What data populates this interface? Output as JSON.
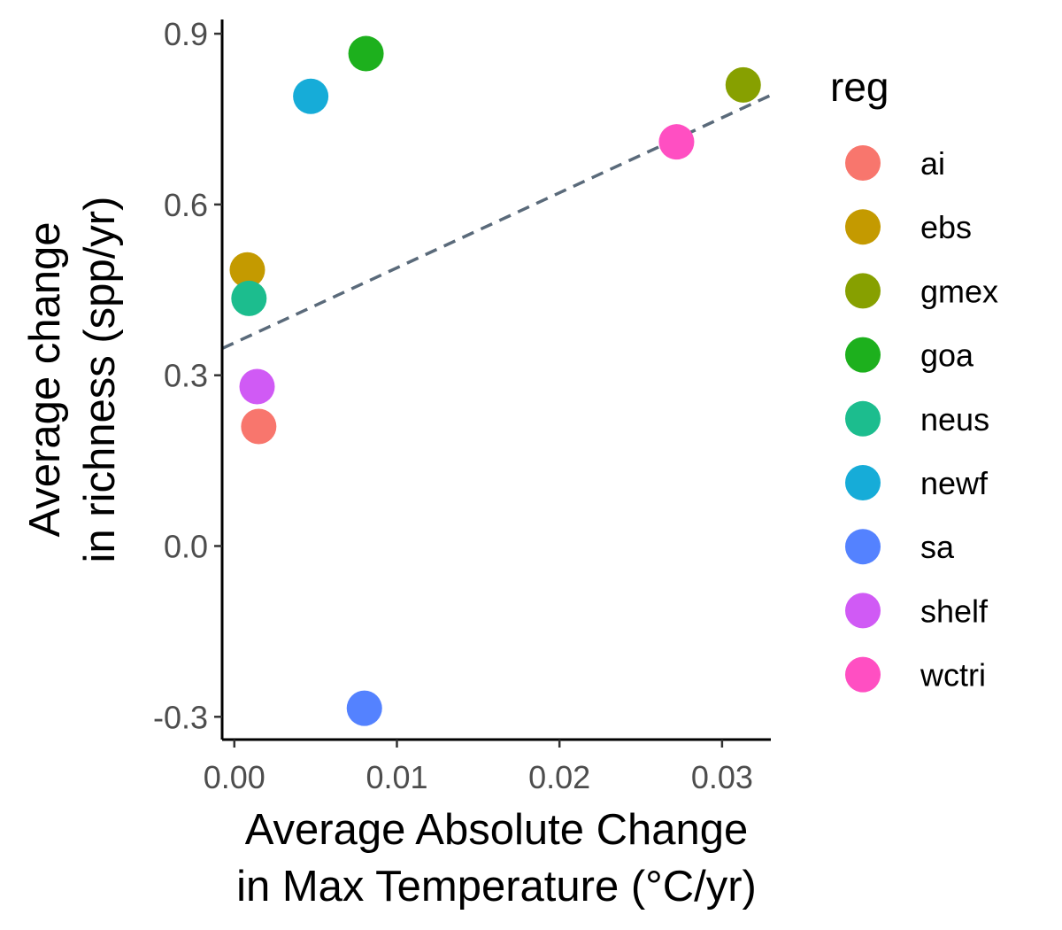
{
  "chart_data": {
    "type": "scatter",
    "xlabel": [
      "Average Absolute Change",
      "in Max Temperature (°C/yr)"
    ],
    "ylabel": [
      "Average change",
      "in richness (spp/yr)"
    ],
    "xlim": [
      -0.00075,
      0.033
    ],
    "ylim": [
      -0.34,
      0.925
    ],
    "x_ticks": [
      {
        "value": 0.0,
        "label": "0.00"
      },
      {
        "value": 0.01,
        "label": "0.01"
      },
      {
        "value": 0.02,
        "label": "0.02"
      },
      {
        "value": 0.03,
        "label": "0.03"
      }
    ],
    "y_ticks": [
      {
        "value": -0.3,
        "label": "-0.3"
      },
      {
        "value": 0.0,
        "label": "0.0"
      },
      {
        "value": 0.3,
        "label": "0.3"
      },
      {
        "value": 0.6,
        "label": "0.6"
      },
      {
        "value": 0.9,
        "label": "0.9"
      }
    ],
    "grid": false,
    "legend": {
      "title": "reg",
      "position": "right"
    },
    "points": [
      {
        "reg": "ai",
        "x": 0.0015,
        "y": 0.21,
        "color": "#F8766D"
      },
      {
        "reg": "ebs",
        "x": 0.0008,
        "y": 0.485,
        "color": "#C49A00"
      },
      {
        "reg": "gmex",
        "x": 0.0313,
        "y": 0.81,
        "color": "#87A000"
      },
      {
        "reg": "goa",
        "x": 0.0081,
        "y": 0.865,
        "color": "#1DB01D"
      },
      {
        "reg": "neus",
        "x": 0.0009,
        "y": 0.435,
        "color": "#1CBD8E"
      },
      {
        "reg": "newf",
        "x": 0.0047,
        "y": 0.79,
        "color": "#16ACD8"
      },
      {
        "reg": "sa",
        "x": 0.008,
        "y": -0.285,
        "color": "#5482FF"
      },
      {
        "reg": "shelf",
        "x": 0.0014,
        "y": 0.28,
        "color": "#D05AF5"
      },
      {
        "reg": "wctri",
        "x": 0.0272,
        "y": 0.71,
        "color": "#FF4FC2"
      }
    ],
    "trendline": {
      "style": "dashed",
      "color": "#5A6A7A",
      "x": [
        -0.00075,
        0.033
      ],
      "y": [
        0.347,
        0.792
      ]
    }
  }
}
